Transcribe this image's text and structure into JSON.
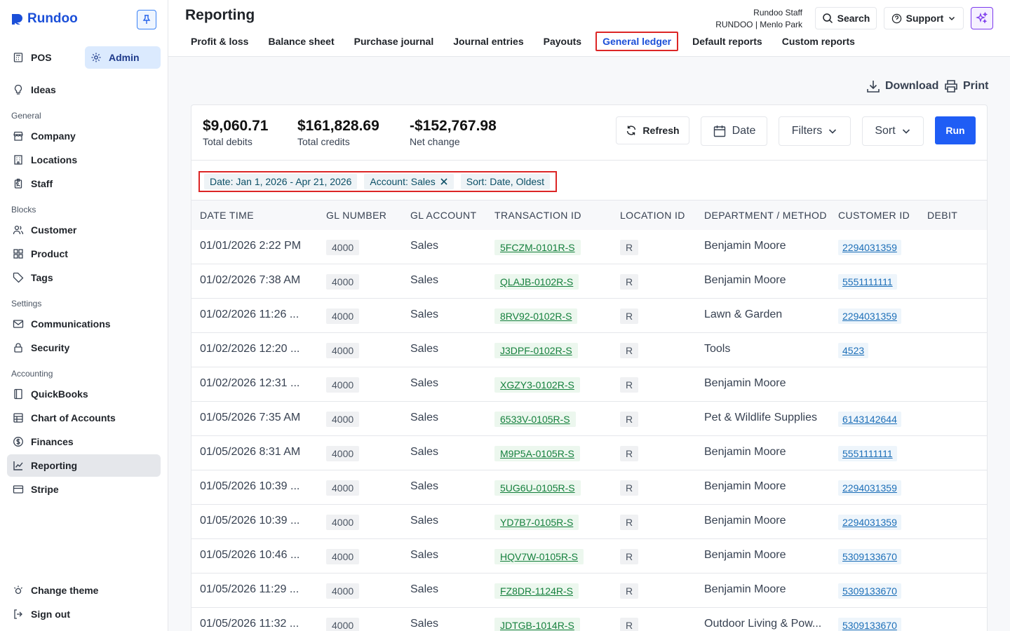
{
  "app": {
    "name": "Rundoo"
  },
  "sidebar": {
    "modes": [
      {
        "label": "POS"
      },
      {
        "label": "Admin"
      }
    ],
    "ideas": "Ideas",
    "sections": [
      {
        "title": "General",
        "items": [
          {
            "label": "Company",
            "icon": "store-icon"
          },
          {
            "label": "Locations",
            "icon": "building-icon"
          },
          {
            "label": "Staff",
            "icon": "badge-icon"
          }
        ]
      },
      {
        "title": "Blocks",
        "items": [
          {
            "label": "Customer",
            "icon": "users-icon"
          },
          {
            "label": "Product",
            "icon": "grid-icon"
          },
          {
            "label": "Tags",
            "icon": "tag-icon"
          }
        ]
      },
      {
        "title": "Settings",
        "items": [
          {
            "label": "Communications",
            "icon": "mail-icon"
          },
          {
            "label": "Security",
            "icon": "lock-icon"
          }
        ]
      },
      {
        "title": "Accounting",
        "items": [
          {
            "label": "QuickBooks",
            "icon": "book-icon"
          },
          {
            "label": "Chart of Accounts",
            "icon": "table-icon"
          },
          {
            "label": "Finances",
            "icon": "dollar-icon"
          },
          {
            "label": "Reporting",
            "icon": "chart-icon"
          },
          {
            "label": "Stripe",
            "icon": "card-icon"
          }
        ]
      }
    ],
    "bottom": [
      {
        "label": "Change theme"
      },
      {
        "label": "Sign out"
      }
    ]
  },
  "header": {
    "title": "Reporting",
    "user_name": "Rundoo Staff",
    "user_location": "RUNDOO | Menlo Park",
    "search_label": "Search",
    "support_label": "Support",
    "tabs": [
      "Profit & loss",
      "Balance sheet",
      "Purchase journal",
      "Journal entries",
      "Payouts",
      "General ledger",
      "Default reports",
      "Custom reports"
    ]
  },
  "toolbar": {
    "download": "Download",
    "print": "Print",
    "refresh": "Refresh",
    "date": "Date",
    "filters": "Filters",
    "sort": "Sort",
    "run": "Run"
  },
  "summary": {
    "debits_value": "$9,060.71",
    "debits_label": "Total debits",
    "credits_value": "$161,828.69",
    "credits_label": "Total credits",
    "net_value": "-$152,767.98",
    "net_label": "Net change"
  },
  "chips": {
    "date": "Date: Jan 1, 2026 - Apr 21, 2026",
    "account": "Account: Sales",
    "sort": "Sort: Date, Oldest"
  },
  "table": {
    "columns": [
      "DATE TIME",
      "GL NUMBER",
      "GL ACCOUNT",
      "TRANSACTION ID",
      "LOCATION ID",
      "DEPARTMENT / METHOD",
      "CUSTOMER ID",
      "DEBIT"
    ],
    "rows": [
      {
        "date": "01/01/2026 2:22 PM",
        "gl": "4000",
        "account": "Sales",
        "txn": "5FCZM-0101R-S",
        "loc": "R",
        "dept": "Benjamin Moore",
        "cust": "2294031359"
      },
      {
        "date": "01/02/2026 7:38 AM",
        "gl": "4000",
        "account": "Sales",
        "txn": "QLAJB-0102R-S",
        "loc": "R",
        "dept": "Benjamin Moore",
        "cust": "5551111111"
      },
      {
        "date": "01/02/2026 11:26 ...",
        "gl": "4000",
        "account": "Sales",
        "txn": "8RV92-0102R-S",
        "loc": "R",
        "dept": "Lawn & Garden",
        "cust": "2294031359"
      },
      {
        "date": "01/02/2026 12:20 ...",
        "gl": "4000",
        "account": "Sales",
        "txn": "J3DPF-0102R-S",
        "loc": "R",
        "dept": "Tools",
        "cust": "4523"
      },
      {
        "date": "01/02/2026 12:31 ...",
        "gl": "4000",
        "account": "Sales",
        "txn": "XGZY3-0102R-S",
        "loc": "R",
        "dept": "Benjamin Moore",
        "cust": ""
      },
      {
        "date": "01/05/2026 7:35 AM",
        "gl": "4000",
        "account": "Sales",
        "txn": "6533V-0105R-S",
        "loc": "R",
        "dept": "Pet & Wildlife Supplies",
        "cust": "6143142644"
      },
      {
        "date": "01/05/2026 8:31 AM",
        "gl": "4000",
        "account": "Sales",
        "txn": "M9P5A-0105R-S",
        "loc": "R",
        "dept": "Benjamin Moore",
        "cust": "5551111111"
      },
      {
        "date": "01/05/2026 10:39 ...",
        "gl": "4000",
        "account": "Sales",
        "txn": "5UG6U-0105R-S",
        "loc": "R",
        "dept": "Benjamin Moore",
        "cust": "2294031359"
      },
      {
        "date": "01/05/2026 10:39 ...",
        "gl": "4000",
        "account": "Sales",
        "txn": "YD7B7-0105R-S",
        "loc": "R",
        "dept": "Benjamin Moore",
        "cust": "2294031359"
      },
      {
        "date": "01/05/2026 10:46 ...",
        "gl": "4000",
        "account": "Sales",
        "txn": "HQV7W-0105R-S",
        "loc": "R",
        "dept": "Benjamin Moore",
        "cust": "5309133670"
      },
      {
        "date": "01/05/2026 11:29 ...",
        "gl": "4000",
        "account": "Sales",
        "txn": "FZ8DR-1124R-S",
        "loc": "R",
        "dept": "Benjamin Moore",
        "cust": "5309133670"
      },
      {
        "date": "01/05/2026 11:32 ...",
        "gl": "4000",
        "account": "Sales",
        "txn": "JDTGB-1014R-S",
        "loc": "R",
        "dept": "Outdoor Living & Pow...",
        "cust": "5309133670"
      }
    ]
  },
  "colors": {
    "brand": "#1b4fd8",
    "run": "#1f5df5",
    "highlight": "#dc2626"
  }
}
